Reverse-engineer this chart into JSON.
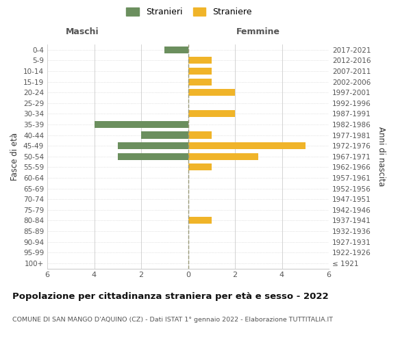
{
  "age_groups": [
    "100+",
    "95-99",
    "90-94",
    "85-89",
    "80-84",
    "75-79",
    "70-74",
    "65-69",
    "60-64",
    "55-59",
    "50-54",
    "45-49",
    "40-44",
    "35-39",
    "30-34",
    "25-29",
    "20-24",
    "15-19",
    "10-14",
    "5-9",
    "0-4"
  ],
  "birth_years": [
    "≤ 1921",
    "1922-1926",
    "1927-1931",
    "1932-1936",
    "1937-1941",
    "1942-1946",
    "1947-1951",
    "1952-1956",
    "1957-1961",
    "1962-1966",
    "1967-1971",
    "1972-1976",
    "1977-1981",
    "1982-1986",
    "1987-1991",
    "1992-1996",
    "1997-2001",
    "2002-2006",
    "2007-2011",
    "2012-2016",
    "2017-2021"
  ],
  "males": [
    0,
    0,
    0,
    0,
    0,
    0,
    0,
    0,
    0,
    0,
    3,
    3,
    2,
    4,
    0,
    0,
    0,
    0,
    0,
    0,
    1
  ],
  "females": [
    0,
    0,
    0,
    0,
    1,
    0,
    0,
    0,
    0,
    1,
    3,
    5,
    1,
    0,
    2,
    0,
    2,
    1,
    1,
    1,
    0
  ],
  "male_color": "#6b8f5e",
  "female_color": "#f0b429",
  "title": "Popolazione per cittadinanza straniera per età e sesso - 2022",
  "subtitle": "COMUNE DI SAN MANGO D'AQUINO (CZ) - Dati ISTAT 1° gennaio 2022 - Elaborazione TUTTITALIA.IT",
  "ylabel_left": "Fasce di età",
  "ylabel_right": "Anni di nascita",
  "xlabel_left": "Maschi",
  "xlabel_right": "Femmine",
  "legend_male": "Stranieri",
  "legend_female": "Straniere",
  "xlim": 6,
  "background_color": "#ffffff",
  "grid_color": "#cccccc"
}
